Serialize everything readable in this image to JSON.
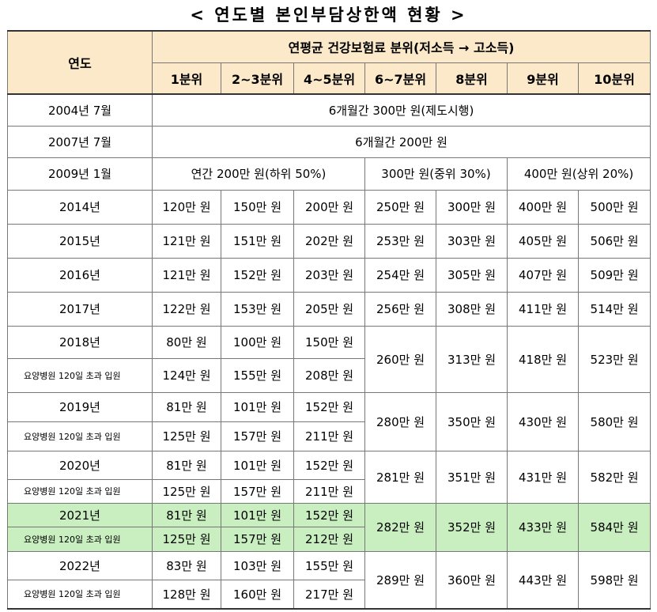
{
  "title": "< 연도별 본인부담상한액 현황 >",
  "header": {
    "year_col": "연도",
    "group": "연평균 건강보험료 분위(저소득 → 고소득)",
    "deciles": [
      "1분위",
      "2~3분위",
      "4~5분위",
      "6~7분위",
      "8분위",
      "9분위",
      "10분위"
    ]
  },
  "early": [
    {
      "year": "2004년 7월",
      "text": "6개월간 300만 원(제도시행)"
    },
    {
      "year": "2007년 7월",
      "text": "6개월간 200만 원"
    }
  ],
  "y2009": {
    "year": "2009년 1월",
    "low": "연간 200만 원(하위 50%)",
    "mid": "300만 원(중위 30%)",
    "high": "400만 원(상위 20%)"
  },
  "simple": [
    {
      "year": "2014년",
      "values": [
        "120만 원",
        "150만 원",
        "200만 원",
        "250만 원",
        "300만 원",
        "400만 원",
        "500만 원"
      ]
    },
    {
      "year": "2015년",
      "values": [
        "121만 원",
        "151만 원",
        "202만 원",
        "253만 원",
        "303만 원",
        "405만 원",
        "506만 원"
      ]
    },
    {
      "year": "2016년",
      "values": [
        "121만 원",
        "152만 원",
        "203만 원",
        "254만 원",
        "305만 원",
        "407만 원",
        "509만 원"
      ]
    },
    {
      "year": "2017년",
      "values": [
        "122만 원",
        "153만 원",
        "205만 원",
        "256만 원",
        "308만 원",
        "411만 원",
        "514만 원"
      ]
    }
  ],
  "split": [
    {
      "year": "2018년",
      "sub": "요양병원 120일 초과 입원",
      "top": [
        "80만 원",
        "100만 원",
        "150만 원"
      ],
      "bottom": [
        "124만 원",
        "155만 원",
        "208만 원"
      ],
      "shared": [
        "260만 원",
        "313만 원",
        "418만 원",
        "523만 원"
      ]
    },
    {
      "year": "2019년",
      "sub": "요양병원 120일 초과 입원",
      "top": [
        "81만 원",
        "101만 원",
        "152만 원"
      ],
      "bottom": [
        "125만 원",
        "157만 원",
        "211만 원"
      ],
      "shared": [
        "280만 원",
        "350만 원",
        "430만 원",
        "580만 원"
      ]
    },
    {
      "year": "2020년",
      "sub": "요양병원 120일 초과 입원",
      "top": [
        "81만 원",
        "101만 원",
        "152만 원"
      ],
      "bottom": [
        "125만 원",
        "157만 원",
        "211만 원"
      ],
      "shared": [
        "281만 원",
        "351만 원",
        "431만 원",
        "582만 원"
      ]
    },
    {
      "year": "2021년",
      "sub": "요양병원 120일 초과 입원",
      "top": [
        "81만 원",
        "101만 원",
        "152만 원"
      ],
      "bottom": [
        "125만 원",
        "157만 원",
        "212만 원"
      ],
      "shared": [
        "282만 원",
        "352만 원",
        "433만 원",
        "584만 원"
      ]
    },
    {
      "year": "2022년",
      "sub": "요양병원 120일 초과 입원",
      "top": [
        "83만 원",
        "103만 원",
        "155만 원"
      ],
      "bottom": [
        "128만 원",
        "160만 원",
        "217만 원"
      ],
      "shared": [
        "289만 원",
        "360만 원",
        "443만 원",
        "598만 원"
      ]
    }
  ],
  "colors": {
    "header_bg": "#fbe9c9",
    "highlight_bg": "#c9efc1"
  }
}
